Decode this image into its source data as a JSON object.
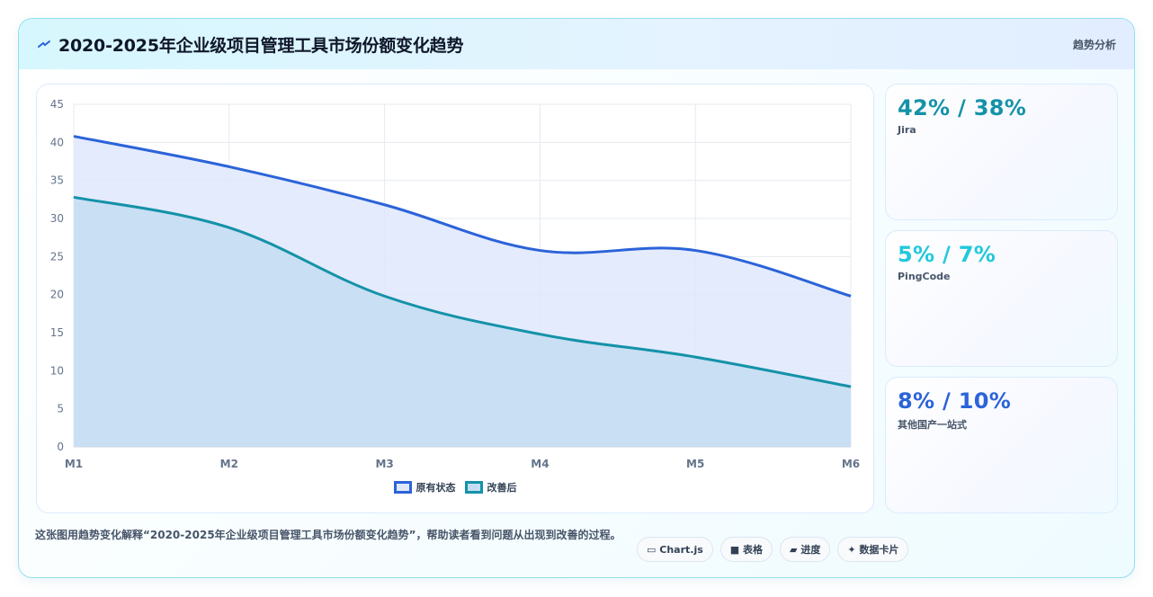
{
  "header": {
    "title": "2020-2025年企业级项目管理工具市场份额变化趋势",
    "right_label": "趋势分析"
  },
  "chart_data": {
    "type": "area",
    "x": [
      "M1",
      "M2",
      "M3",
      "M4",
      "M5",
      "M6"
    ],
    "ylim": [
      0,
      45
    ],
    "yticks": [
      0,
      5,
      10,
      15,
      20,
      25,
      30,
      35,
      40,
      45
    ],
    "grid": true,
    "legend_position": "bottom",
    "series": [
      {
        "name": "原有状态",
        "values": [
          40.8,
          36.8,
          31.8,
          25.8,
          25.8,
          19.8
        ],
        "color": "#2b63d9",
        "fill": "#dfe8fb"
      },
      {
        "name": "改善后",
        "values": [
          32.8,
          28.8,
          19.8,
          14.8,
          11.8,
          7.9
        ],
        "color": "#1492a8",
        "fill": "#c4ddf2"
      }
    ]
  },
  "stats": [
    {
      "value": "42% / 38%",
      "label": "Jira",
      "color": "#1492a8"
    },
    {
      "value": "5% / 7%",
      "label": "PingCode",
      "color": "#22c8dc"
    },
    {
      "value": "8% / 10%",
      "label": "其他国产一站式",
      "color": "#2b63d9"
    }
  ],
  "footer": {
    "description": "这张图用趋势变化解释“2020-2025年企业级项目管理工具市场份额变化趋势”，帮助读者看到问题从出现到改善的过程。"
  },
  "tags": [
    {
      "icon": "▭",
      "label": "Chart.js"
    },
    {
      "icon": "■",
      "label": "表格"
    },
    {
      "icon": "▰",
      "label": "进度"
    },
    {
      "icon": "✦",
      "label": "数据卡片"
    }
  ]
}
